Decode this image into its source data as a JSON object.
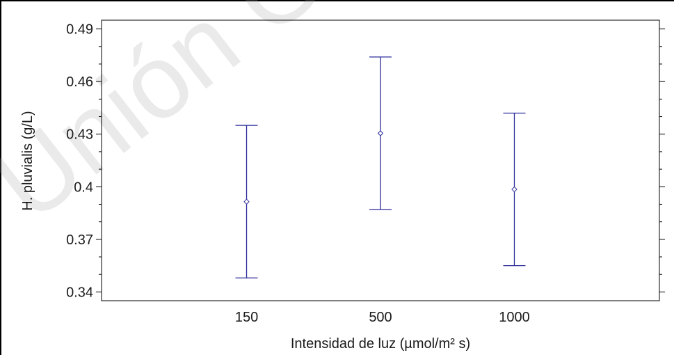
{
  "watermark": "Unión Gene",
  "chart_data": {
    "type": "errorbar",
    "title": "",
    "xlabel": "Intensidad de luz (µmol/m² s)",
    "ylabel": "H. pluvialis (g/L)",
    "categories": [
      "150",
      "500",
      "1000"
    ],
    "series": [
      {
        "mean": [
          0.3915,
          0.4305,
          0.3985
        ],
        "lower": [
          0.348,
          0.387,
          0.355
        ],
        "upper": [
          0.435,
          0.474,
          0.442
        ]
      }
    ],
    "ylim": [
      0.335,
      0.495
    ],
    "yticks": [
      0.34,
      0.37,
      0.4,
      0.43,
      0.46,
      0.49
    ],
    "ytick_labels": [
      "0.34",
      "0.37",
      "0.4",
      "0.43",
      "0.46",
      "0.49"
    ],
    "grid": false,
    "colors": {
      "series": "#2b2b9c",
      "axis": "#000000"
    }
  }
}
